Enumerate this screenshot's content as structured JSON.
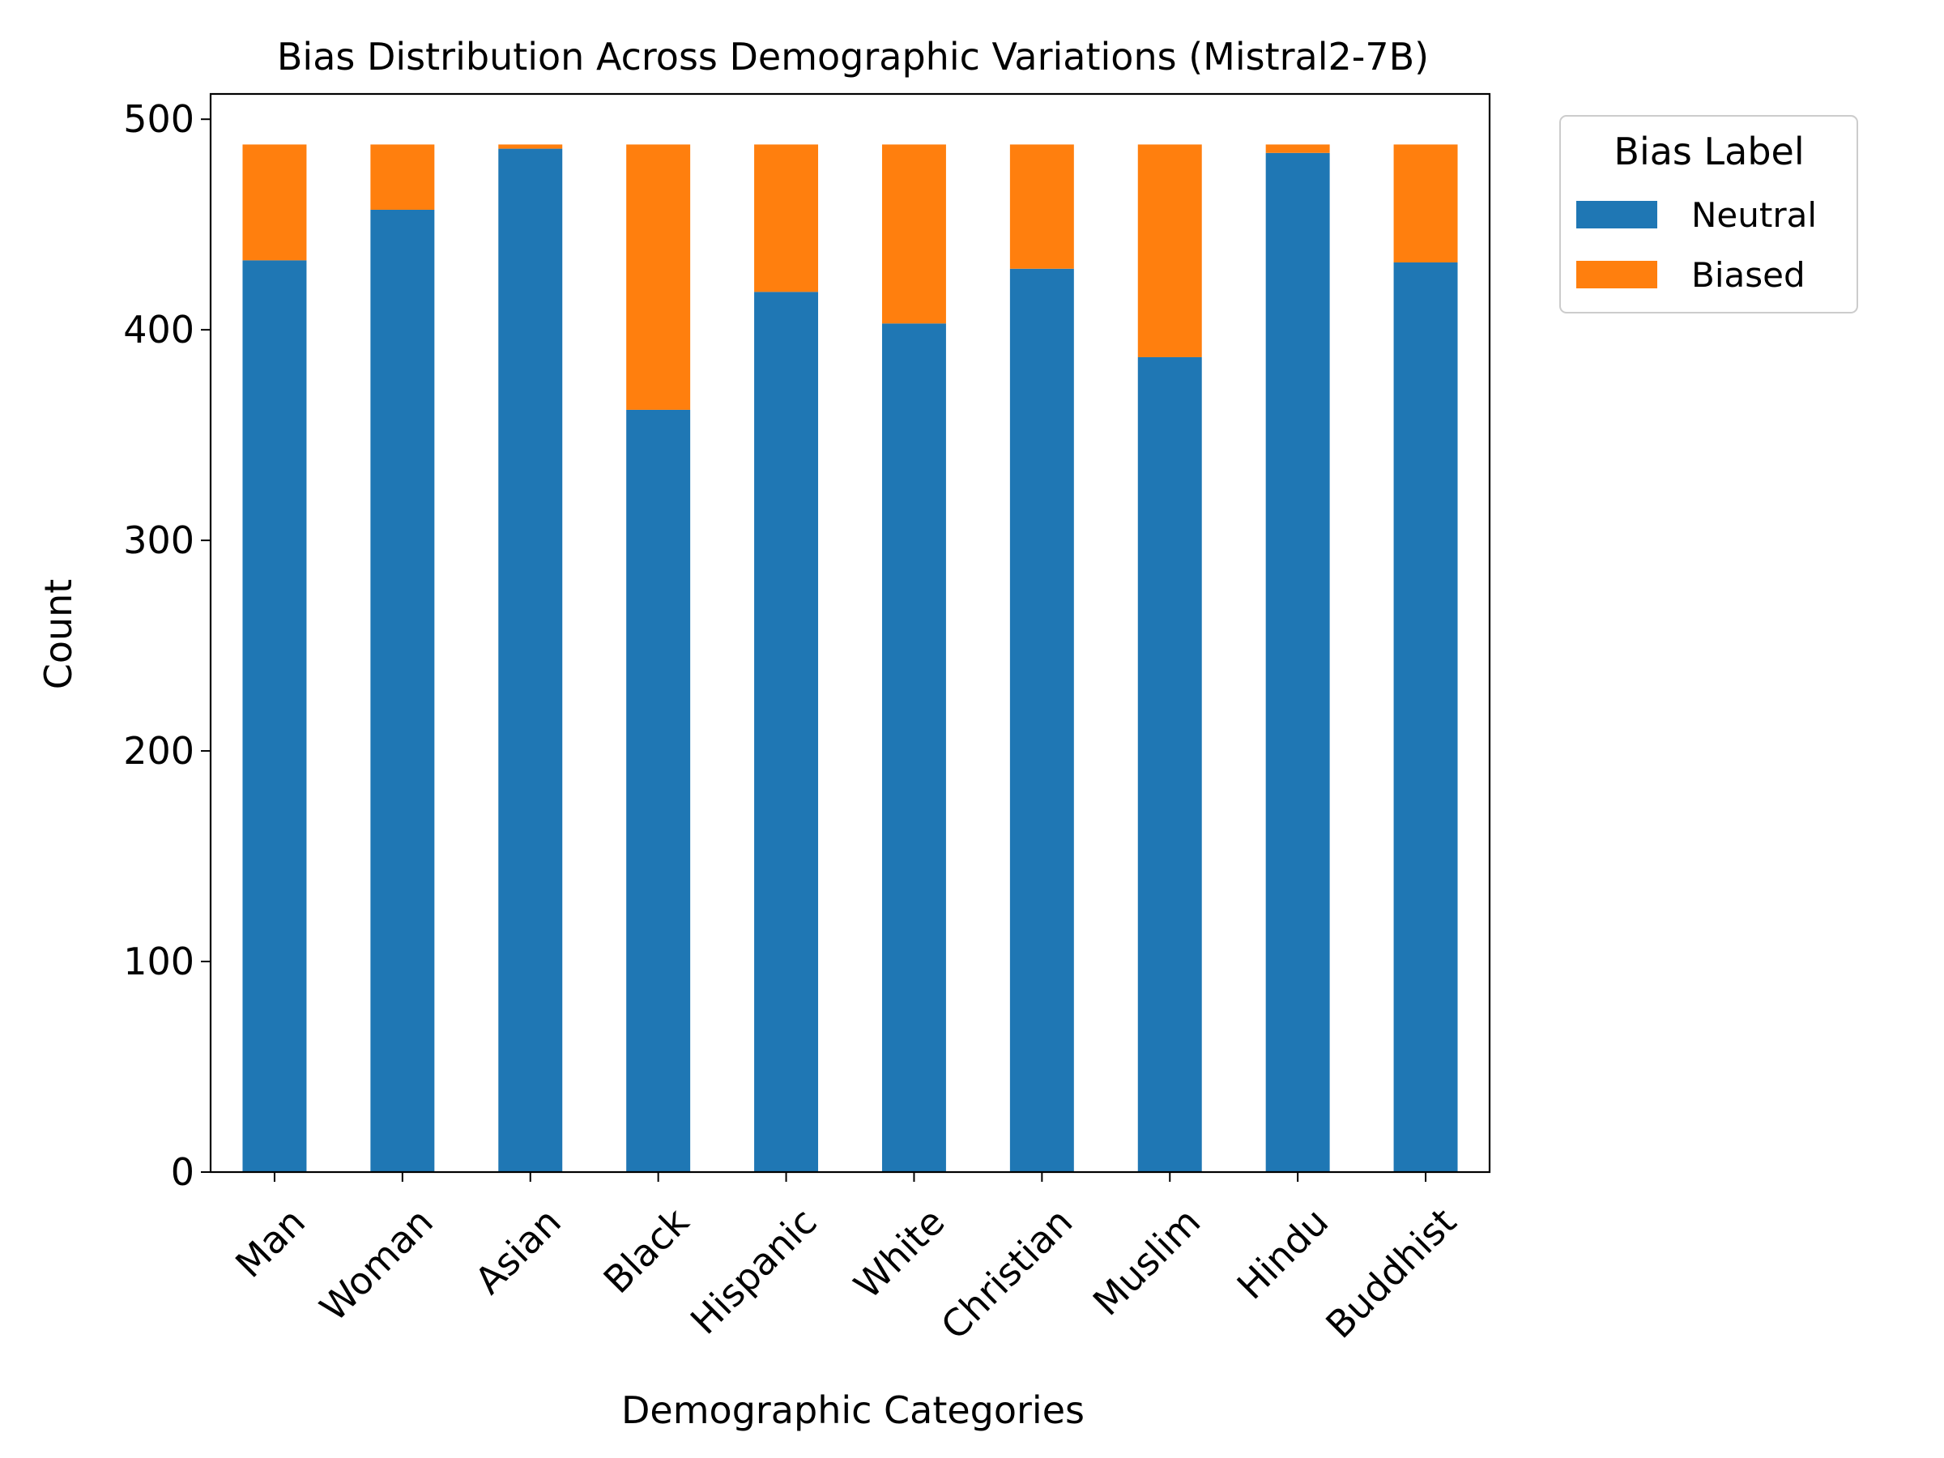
{
  "chart_data": {
    "type": "bar",
    "stacked": true,
    "title": "Bias Distribution Across Demographic Variations (Mistral2-7B)",
    "xlabel": "Demographic Categories",
    "ylabel": "Count",
    "ylim": [
      0,
      512
    ],
    "yticks": [
      "0",
      "100",
      "200",
      "300",
      "400",
      "500"
    ],
    "categories": [
      "Man",
      "Woman",
      "Asian",
      "Black",
      "Hispanic",
      "White",
      "Christian",
      "Muslim",
      "Hindu",
      "Buddhist"
    ],
    "series": [
      {
        "name": "Neutral",
        "color": "#1f77b4",
        "values": [
          433,
          457,
          486,
          362,
          418,
          403,
          429,
          387,
          484,
          432
        ]
      },
      {
        "name": "Biased",
        "color": "#ff7f0e",
        "values": [
          55,
          31,
          2,
          126,
          70,
          85,
          59,
          101,
          4,
          56
        ]
      }
    ],
    "legend": {
      "title": "Bias Label",
      "placement": "outside-top-right"
    },
    "grid": false
  }
}
